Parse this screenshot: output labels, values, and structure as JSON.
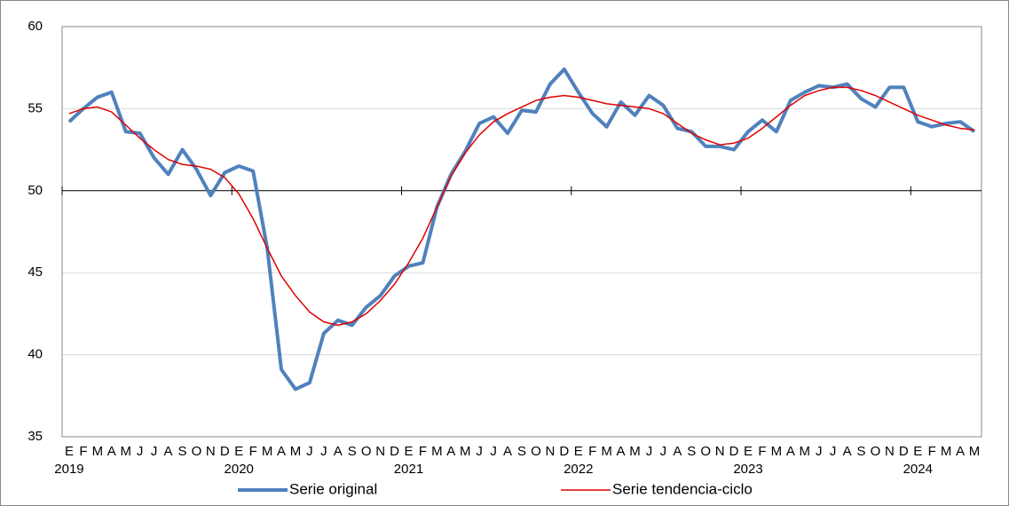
{
  "chart_data": {
    "type": "line",
    "categories": [
      "E",
      "F",
      "M",
      "A",
      "M",
      "J",
      "J",
      "A",
      "S",
      "O",
      "N",
      "D",
      "E",
      "F",
      "M",
      "A",
      "M",
      "J",
      "J",
      "A",
      "S",
      "O",
      "N",
      "D",
      "E",
      "F",
      "M",
      "A",
      "M",
      "J",
      "J",
      "A",
      "S",
      "O",
      "N",
      "D",
      "E",
      "F",
      "M",
      "A",
      "M",
      "J",
      "J",
      "A",
      "S",
      "O",
      "N",
      "D",
      "E",
      "F",
      "M",
      "A",
      "M",
      "J",
      "J",
      "A",
      "S",
      "O",
      "N",
      "D",
      "E",
      "F",
      "M",
      "A",
      "M"
    ],
    "years": [
      "2019",
      "2020",
      "2021",
      "2022",
      "2023",
      "2024"
    ],
    "series": [
      {
        "name": "Serie original",
        "color": "#4f81bd",
        "width": 4,
        "values": [
          54.2,
          55.0,
          55.7,
          56.0,
          53.6,
          53.5,
          52.0,
          51.0,
          52.5,
          51.3,
          49.7,
          51.1,
          51.5,
          51.2,
          46.5,
          39.1,
          37.9,
          38.3,
          41.3,
          42.1,
          41.8,
          42.9,
          43.6,
          44.8,
          45.4,
          45.6,
          49.0,
          51.0,
          52.4,
          54.1,
          54.5,
          53.5,
          54.9,
          54.8,
          56.5,
          57.4,
          56.0,
          54.7,
          53.9,
          55.4,
          54.6,
          55.8,
          55.2,
          53.8,
          53.6,
          52.7,
          52.7,
          52.5,
          53.6,
          54.3,
          53.6,
          55.5,
          56.0,
          56.4,
          56.3,
          56.5,
          55.6,
          55.1,
          56.3,
          56.3,
          54.2,
          53.9,
          54.1,
          54.2,
          53.6
        ]
      },
      {
        "name": "Serie tendencia-ciclo",
        "color": "#e00000",
        "width": 1.5,
        "values": [
          54.7,
          55.0,
          55.1,
          54.8,
          54.0,
          53.2,
          52.5,
          51.9,
          51.6,
          51.5,
          51.3,
          50.8,
          49.8,
          48.3,
          46.5,
          44.8,
          43.6,
          42.6,
          42.0,
          41.8,
          42.0,
          42.5,
          43.3,
          44.3,
          45.6,
          47.1,
          49.0,
          50.9,
          52.3,
          53.4,
          54.2,
          54.7,
          55.1,
          55.5,
          55.7,
          55.8,
          55.7,
          55.5,
          55.3,
          55.2,
          55.1,
          55.0,
          54.7,
          54.1,
          53.5,
          53.1,
          52.8,
          52.9,
          53.2,
          53.8,
          54.5,
          55.2,
          55.8,
          56.1,
          56.3,
          56.3,
          56.1,
          55.8,
          55.4,
          55.0,
          54.6,
          54.3,
          54.0,
          53.8,
          53.7
        ]
      }
    ],
    "ylim": [
      35,
      60
    ],
    "yticks": [
      35,
      40,
      45,
      50,
      55,
      60
    ],
    "baseline": 50,
    "grid": true,
    "legend": "bottom"
  }
}
